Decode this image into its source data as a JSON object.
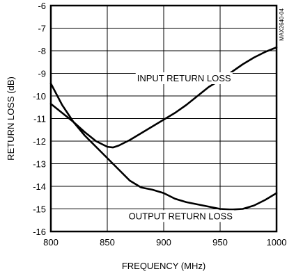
{
  "chart_data": {
    "type": "line",
    "title": "",
    "xlabel": "FREQUENCY (MHz)",
    "ylabel": "RETURN LOSS (dB)",
    "xlim": [
      800,
      1000
    ],
    "ylim": [
      -16,
      -6
    ],
    "x_ticks": [
      "800",
      "850",
      "900",
      "950",
      "1000"
    ],
    "y_ticks": [
      "-6",
      "-7",
      "-8",
      "-9",
      "-10",
      "-11",
      "-12",
      "-13",
      "-14",
      "-15",
      "-16"
    ],
    "grid": true,
    "figure_id": "MAX2640-04",
    "series": [
      {
        "name": "INPUT RETURN LOSS",
        "x": [
          800,
          810,
          820,
          830,
          840,
          850,
          855,
          860,
          870,
          880,
          890,
          900,
          910,
          920,
          930,
          940,
          950,
          960,
          970,
          980,
          990,
          1000
        ],
        "y": [
          -10.35,
          -10.75,
          -11.15,
          -11.6,
          -12.0,
          -12.25,
          -12.28,
          -12.2,
          -11.95,
          -11.65,
          -11.35,
          -11.05,
          -10.75,
          -10.4,
          -10.0,
          -9.6,
          -9.3,
          -8.95,
          -8.6,
          -8.3,
          -8.05,
          -7.85
        ]
      },
      {
        "name": "OUTPUT RETURN LOSS",
        "x": [
          800,
          810,
          820,
          830,
          840,
          850,
          860,
          870,
          880,
          890,
          900,
          910,
          920,
          930,
          940,
          950,
          960,
          970,
          980,
          990,
          1000
        ],
        "y": [
          -9.45,
          -10.4,
          -11.15,
          -11.75,
          -12.25,
          -12.75,
          -13.25,
          -13.75,
          -14.05,
          -14.15,
          -14.3,
          -14.55,
          -14.7,
          -14.8,
          -14.9,
          -15.0,
          -15.03,
          -15.0,
          -14.85,
          -14.6,
          -14.3
        ]
      }
    ],
    "annotations": [
      {
        "text": "INPUT RETURN LOSS",
        "x": 918,
        "y": -9.2,
        "series": 0
      },
      {
        "text": "OUTPUT RETURN LOSS",
        "x": 915,
        "y": -15.3,
        "series": 1
      }
    ]
  }
}
